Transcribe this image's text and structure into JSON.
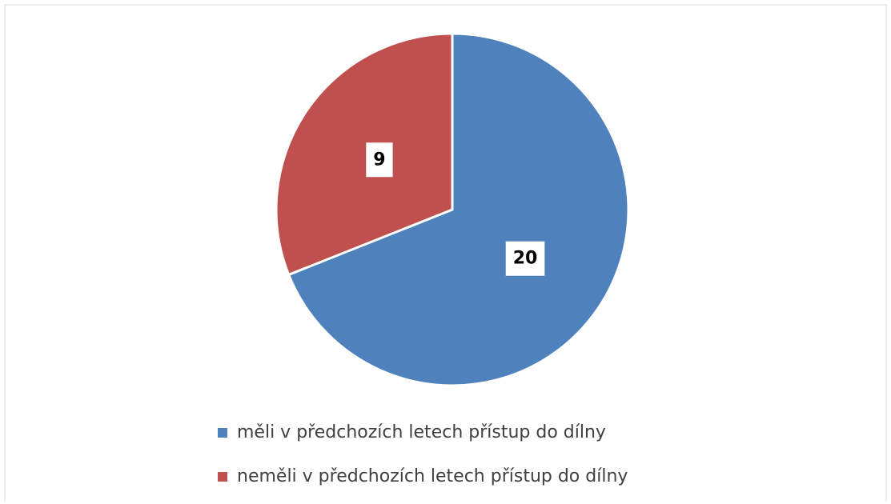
{
  "chart_data": {
    "type": "pie",
    "categories": [
      "měli v předchozích letech přístup do dílny",
      "neměli v předchozích letech přístup do dílny"
    ],
    "values": [
      20,
      9
    ],
    "colors": [
      "#4f81bd",
      "#c0504d"
    ]
  }
}
